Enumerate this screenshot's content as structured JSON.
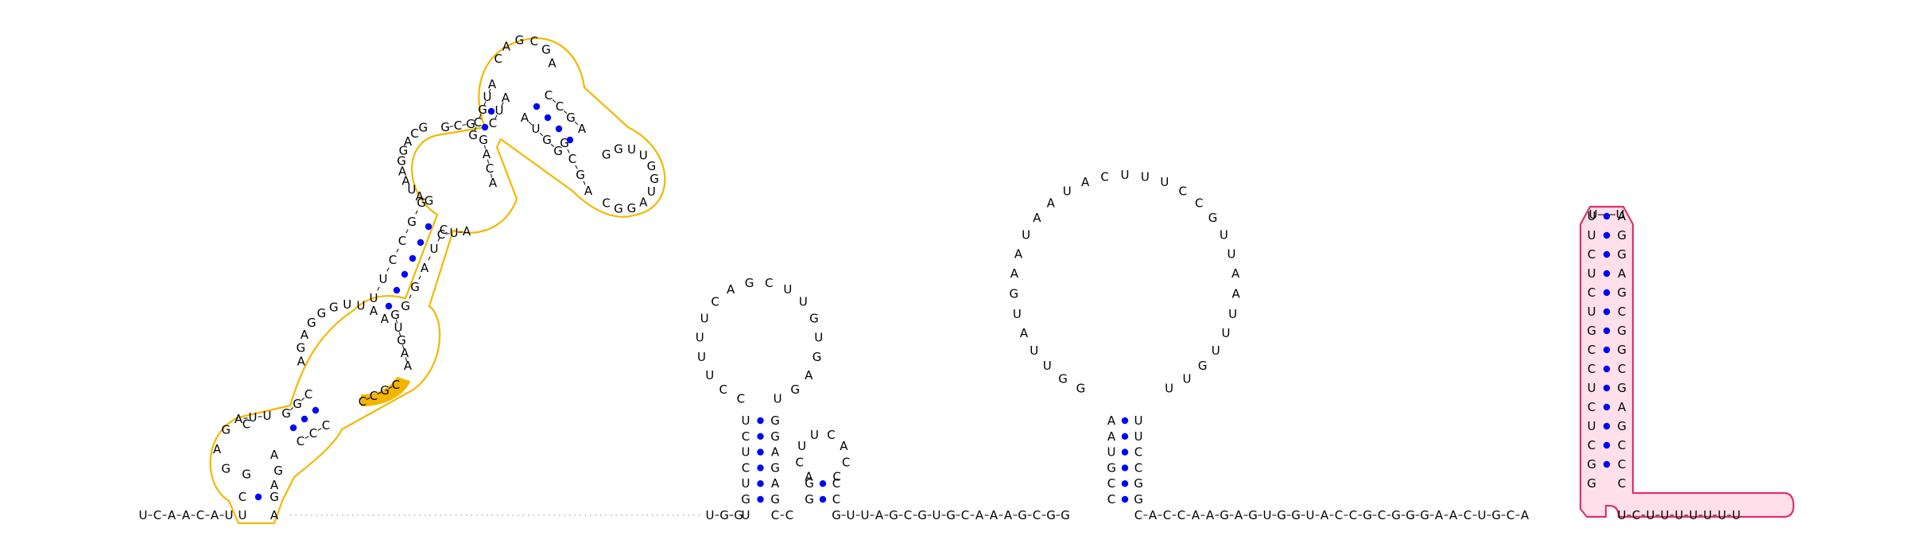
{
  "diagram": {
    "type": "rna-secondary-structure",
    "colors": {
      "pair_dot": "#0000ff",
      "highlight_orange": "#f2b800",
      "highlight_pink_stroke": "#e0306a",
      "highlight_pink_fill": "#ffe0ea"
    },
    "segments": {
      "leader": "UCAACAU",
      "linker_left": "UGG",
      "linker_mid": "CC",
      "linker_long": "GUUAGCGUGCAAAGCGG",
      "linker_right": "CACCAAGAGUGGUACCGCGGGAACUGCA",
      "tail": "UCUUUUUUU"
    },
    "hairpins": {
      "left_big": {
        "note": "Large multi-branch hairpin (highlighted orange)",
        "left_strand": "CGAGGUUGGAGAGGGUUAAUUCCGGGACGAGGCGAU",
        "right_strand": "AGAGCGAGCCCUCUCAUAACGGGUGACGGAUCCCCUGA",
        "loop_top": "CAGCGA",
        "loop_right": "GGUUGGUAGGC",
        "highlight_run": "CCGC"
      },
      "mid_left": {
        "stem_left": "GUCUCUG",
        "loop": "CCUUUUCAGCUUGUGAGU",
        "stem_right": "GGAAGA"
      },
      "mid_small": {
        "stem_left": "GGC",
        "loop": "ACUUCACC",
        "stem_right": "CCC"
      },
      "mid_right": {
        "stem_left": "AAUGCC",
        "loop": "GGUUAUGAAUAAUACUUUCCGUUAAUUUGUU",
        "stem_right": "UCCGG"
      },
      "right_long": {
        "note": "Long hairpin highlighted pink",
        "stem_left": "UUCUCUGCCUCUCGG",
        "loop": "UU",
        "stem_right": "AGGAGCGGCGAGCCC"
      }
    }
  }
}
